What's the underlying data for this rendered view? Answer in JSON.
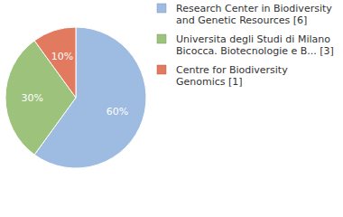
{
  "chart_data": {
    "type": "pie",
    "categories": [
      "Research Center in Biodiversity and Genetic Resources [6]",
      "Universita degli Studi di Milano Bicocca. Biotecnologie e B... [3]",
      "Centre for Biodiversity Genomics [1]"
    ],
    "values": [
      60,
      30,
      10
    ],
    "value_labels": [
      "60%",
      "30%",
      "10%"
    ],
    "colors": [
      "#9ebbe1",
      "#9cc27b",
      "#e17a5e"
    ],
    "data_labels": true,
    "legend": "right"
  }
}
